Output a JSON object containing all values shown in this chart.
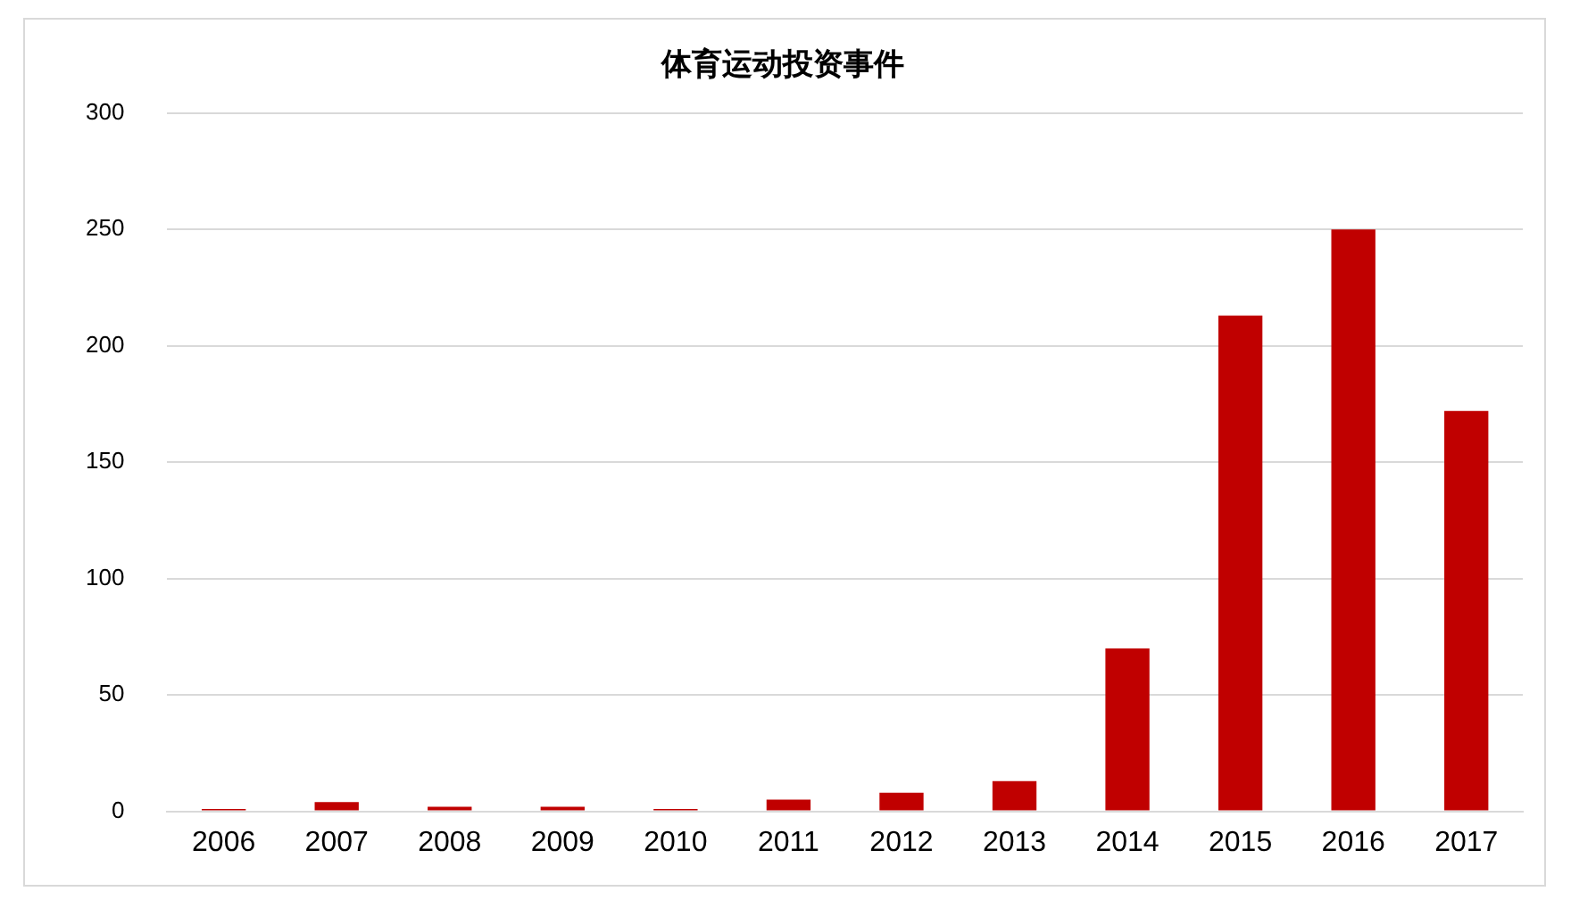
{
  "chart_data": {
    "type": "bar",
    "title": "体育运动投资事件",
    "categories": [
      "2006",
      "2007",
      "2008",
      "2009",
      "2010",
      "2011",
      "2012",
      "2013",
      "2014",
      "2015",
      "2016",
      "2017"
    ],
    "values": [
      1,
      4,
      2,
      2,
      1,
      5,
      8,
      13,
      70,
      213,
      250,
      172
    ],
    "color": "#c00000",
    "ylim": [
      0,
      300
    ],
    "yticks": [
      0,
      50,
      100,
      150,
      200,
      250,
      300
    ],
    "grid": "y",
    "legend": false
  }
}
